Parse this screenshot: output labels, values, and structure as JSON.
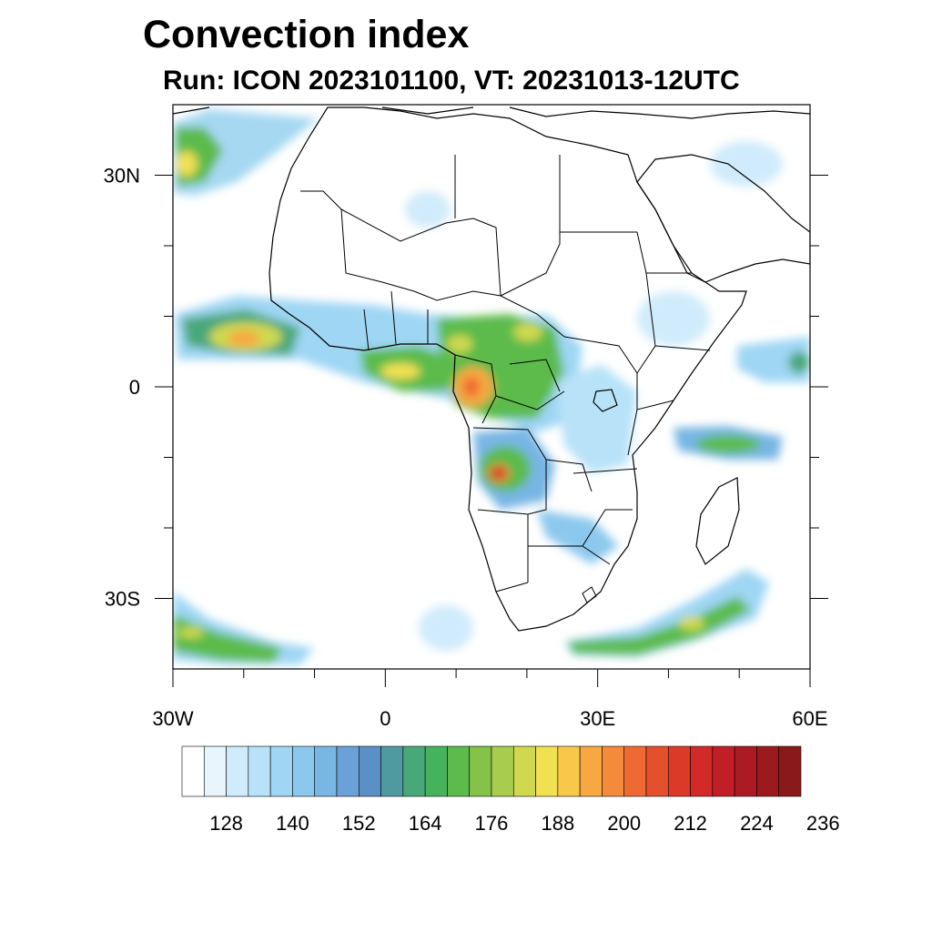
{
  "title": "Convection index",
  "subtitle": "Run: ICON 2023101100,  VT: 20231013-12UTC",
  "map": {
    "lon_range": [
      -30,
      60
    ],
    "lat_range": [
      -40,
      40
    ],
    "lon_ticks": [
      {
        "value": -30,
        "label": "30W"
      },
      {
        "value": 0,
        "label": "0"
      },
      {
        "value": 30,
        "label": "30E"
      },
      {
        "value": 60,
        "label": "60E"
      }
    ],
    "lat_ticks": [
      {
        "value": 30,
        "label": "30N"
      },
      {
        "value": 0,
        "label": "0"
      },
      {
        "value": -30,
        "label": "30S"
      }
    ],
    "minor_lon_step": 10,
    "minor_lat_step": 10
  },
  "colorbar": {
    "colors": [
      "#ffffff",
      "#e8f5fd",
      "#d0ebfb",
      "#b8e2f8",
      "#9fd6f4",
      "#8cc8ee",
      "#78b6e4",
      "#6aa2d8",
      "#5b90c6",
      "#4e9aa0",
      "#48a87a",
      "#45b35c",
      "#5cbb4b",
      "#84c24a",
      "#a8cc4e",
      "#d0d84f",
      "#f1e052",
      "#f9c84b",
      "#f8a842",
      "#f48b3a",
      "#ee6a32",
      "#e5502c",
      "#dc3a29",
      "#d22929",
      "#c11e27",
      "#ac1a24",
      "#9c1a1e",
      "#8a1a1a"
    ],
    "labels": [
      "128",
      "140",
      "152",
      "164",
      "176",
      "188",
      "200",
      "212",
      "224",
      "236"
    ]
  }
}
